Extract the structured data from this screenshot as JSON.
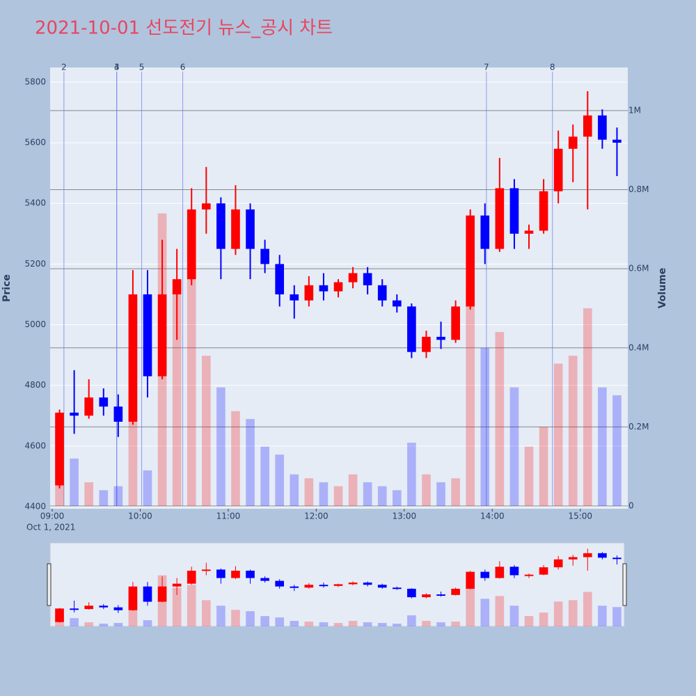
{
  "chart_data": {
    "type": "candlestick",
    "title": "2021-10-01 선도전기 뉴스_공시 차트",
    "x_date_label": "Oct 1, 2021",
    "y_title": "Price",
    "y2_title": "Volume",
    "up_color": "#ff0000",
    "down_color": "#0000ff",
    "x": [
      "09:00",
      "09:10",
      "09:20",
      "09:30",
      "09:40",
      "09:50",
      "10:00",
      "10:10",
      "10:20",
      "10:30",
      "10:40",
      "10:50",
      "11:00",
      "11:10",
      "11:20",
      "11:30",
      "11:40",
      "11:50",
      "12:00",
      "12:10",
      "12:20",
      "12:30",
      "12:40",
      "12:50",
      "13:00",
      "13:10",
      "13:20",
      "13:30",
      "13:40",
      "13:50",
      "14:00",
      "14:10",
      "14:20",
      "14:30",
      "14:40",
      "14:50",
      "15:00",
      "15:10",
      "15:20"
    ],
    "open": [
      4470,
      4710,
      4700,
      4760,
      4730,
      4680,
      5100,
      4830,
      5100,
      5150,
      5380,
      5400,
      5250,
      5380,
      5250,
      5200,
      5100,
      5080,
      5130,
      5110,
      5140,
      5170,
      5130,
      5080,
      5060,
      4910,
      4960,
      4950,
      5060,
      5360,
      5250,
      5450,
      5300,
      5310,
      5440,
      5580,
      5620,
      5690,
      5610
    ],
    "high": [
      4720,
      4850,
      4820,
      4790,
      4770,
      5180,
      5180,
      5280,
      5250,
      5450,
      5520,
      5420,
      5460,
      5400,
      5280,
      5230,
      5130,
      5160,
      5170,
      5150,
      5190,
      5190,
      5150,
      5100,
      5070,
      4980,
      5010,
      5080,
      5380,
      5400,
      5550,
      5480,
      5330,
      5480,
      5640,
      5660,
      5770,
      5710,
      5650
    ],
    "low": [
      4460,
      4640,
      4690,
      4700,
      4630,
      4670,
      4760,
      4820,
      4950,
      5130,
      5300,
      5150,
      5230,
      5150,
      5170,
      5060,
      5020,
      5060,
      5080,
      5090,
      5120,
      5100,
      5060,
      5040,
      4890,
      4890,
      4920,
      4940,
      5050,
      5200,
      5240,
      5250,
      5250,
      5300,
      5400,
      5470,
      5380,
      5580,
      5490
    ],
    "close": [
      4710,
      4700,
      4760,
      4730,
      4680,
      5100,
      4830,
      5100,
      5150,
      5380,
      5400,
      5250,
      5380,
      5250,
      5200,
      5100,
      5080,
      5130,
      5110,
      5140,
      5170,
      5130,
      5080,
      5060,
      4910,
      4960,
      4950,
      5060,
      5360,
      5250,
      5450,
      5300,
      5310,
      5440,
      5580,
      5620,
      5690,
      5610,
      5600
    ],
    "volume": [
      180000,
      120000,
      60000,
      40000,
      50000,
      520000,
      90000,
      740000,
      560000,
      600000,
      380000,
      300000,
      240000,
      220000,
      150000,
      130000,
      80000,
      70000,
      60000,
      50000,
      80000,
      60000,
      50000,
      40000,
      160000,
      80000,
      60000,
      70000,
      560000,
      400000,
      440000,
      300000,
      150000,
      200000,
      360000,
      380000,
      500000,
      300000,
      280000
    ],
    "xlim": [
      "09:00",
      "15:30"
    ],
    "xticks": [
      "09:00",
      "10:00",
      "11:00",
      "12:00",
      "13:00",
      "14:00",
      "15:00"
    ],
    "ylim": [
      4393,
      5848
    ],
    "yticks": [
      4400,
      4600,
      4800,
      5000,
      5200,
      5400,
      5600,
      5800
    ],
    "y2lim": [
      0,
      1109000
    ],
    "y2ticks": [
      {
        "value": 0,
        "label": "0"
      },
      {
        "value": 200000,
        "label": "0.2M"
      },
      {
        "value": 400000,
        "label": "0.4M"
      },
      {
        "value": 600000,
        "label": "0.6M"
      },
      {
        "value": 800000,
        "label": "0.8M"
      },
      {
        "value": 1000000,
        "label": "1M"
      }
    ],
    "annotations": [
      {
        "label": "2",
        "x": "09:08"
      },
      {
        "label": "3",
        "x": "09:44"
      },
      {
        "label": "4",
        "x": "09:44"
      },
      {
        "label": "5",
        "x": "10:01"
      },
      {
        "label": "6",
        "x": "10:29"
      },
      {
        "label": "7",
        "x": "13:56"
      },
      {
        "label": "8",
        "x": "14:41"
      }
    ],
    "grid": true
  }
}
